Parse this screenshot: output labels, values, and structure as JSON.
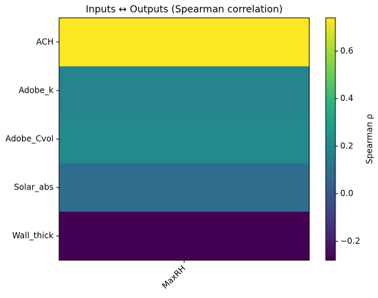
{
  "chart_data": {
    "type": "heatmap",
    "title": "Inputs ↔ Outputs (Spearman correlation)",
    "x_categories": [
      "MaxRH"
    ],
    "y_categories": [
      "ACH",
      "Adobe_k",
      "Adobe_Cvol",
      "Solar_abs",
      "Wall_thick"
    ],
    "values": [
      [
        0.74
      ],
      [
        0.18
      ],
      [
        0.2
      ],
      [
        0.08
      ],
      [
        -0.28
      ]
    ],
    "colormap": "viridis",
    "colorbar_label": "Spearman ρ",
    "clim": [
      -0.28,
      0.74
    ],
    "cticks": [
      {
        "value": -0.2,
        "label": "−0.2"
      },
      {
        "value": 0,
        "label": "0.0"
      },
      0.2,
      0.4,
      0.6
    ]
  }
}
